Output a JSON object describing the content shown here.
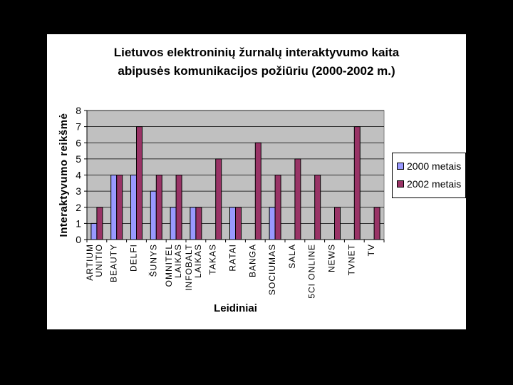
{
  "chart_data": {
    "type": "bar",
    "title_lines": [
      "Lietuvos elektroninių žurnalų interaktyvumo kaita",
      "abipusės komunikacijos požiūriu (2000-2002 m.)"
    ],
    "xlabel": "Leidiniai",
    "ylabel": "Interaktyvumo reikšmė",
    "ylim": [
      0,
      8
    ],
    "yticks": [
      "0",
      "1",
      "2",
      "3",
      "4",
      "5",
      "6",
      "7",
      "8"
    ],
    "categories": [
      [
        "ARTIUM",
        "UNITIO"
      ],
      [
        "BEAUTY"
      ],
      [
        "DELFI"
      ],
      [
        "ŠUNYS"
      ],
      [
        "OMNITEL",
        "LAIKAS"
      ],
      [
        "INFOBALT",
        "LAIKAS"
      ],
      [
        "TAKAS"
      ],
      [
        "RATAI"
      ],
      [
        "BANGA"
      ],
      [
        "SOCIUMAS"
      ],
      [
        "SALA"
      ],
      [
        "5CI ONLINE"
      ],
      [
        "NEWS"
      ],
      [
        "TVNET"
      ],
      [
        "TV"
      ]
    ],
    "series": [
      {
        "name": "2000 metais",
        "color": "#9999ff",
        "values": [
          1,
          4,
          4,
          3,
          2,
          2,
          0,
          2,
          0,
          2,
          0,
          0,
          0,
          0,
          0
        ]
      },
      {
        "name": "2002 metais",
        "color": "#993366",
        "values": [
          2,
          4,
          7,
          4,
          4,
          2,
          5,
          2,
          6,
          4,
          5,
          4,
          2,
          7,
          2
        ]
      }
    ],
    "plot_background": "#c0c0c0",
    "grid": true,
    "legend_position": "right"
  }
}
